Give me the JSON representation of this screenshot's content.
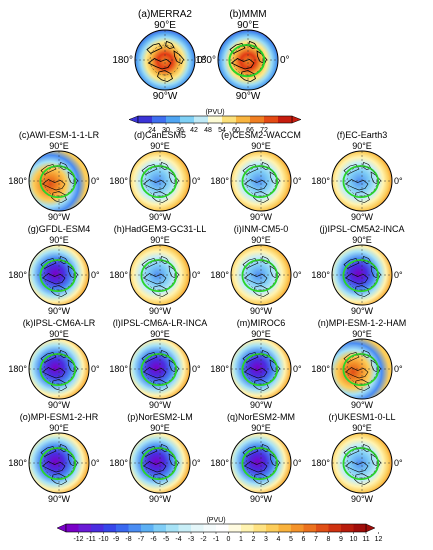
{
  "figure": {
    "top_panels": [
      {
        "label": "(a)MERRA2",
        "pattern": "clim"
      },
      {
        "label": "(b)MMM",
        "pattern": "clim"
      }
    ],
    "bias_panels": [
      {
        "label": "(c)AWI-ESM-1-1-LR",
        "pattern": "warm"
      },
      {
        "label": "(d)CanESM5",
        "pattern": "mild"
      },
      {
        "label": "(e)CESM2-WACCM",
        "pattern": "mild"
      },
      {
        "label": "(f)EC-Earth3",
        "pattern": "mild"
      },
      {
        "label": "(g)GFDL-ESM4",
        "pattern": "strong"
      },
      {
        "label": "(h)HadGEM3-GC31-LL",
        "pattern": "mild"
      },
      {
        "label": "(i)INM-CM5-0",
        "pattern": "mild"
      },
      {
        "label": "(j)IPSL-CM5A2-INCA",
        "pattern": "strong"
      },
      {
        "label": "(k)IPSL-CM6A-LR",
        "pattern": "strong"
      },
      {
        "label": "(l)IPSL-CM6A-LR-INCA",
        "pattern": "strong"
      },
      {
        "label": "(m)MIROC6",
        "pattern": "strong"
      },
      {
        "label": "(n)MPI-ESM-1-2-HAM",
        "pattern": "warm"
      },
      {
        "label": "(o)MPI-ESM1-2-HR",
        "pattern": "strong"
      },
      {
        "label": "(p)NorESM2-LM",
        "pattern": "strong"
      },
      {
        "label": "(q)NorESM2-MM",
        "pattern": "strong"
      },
      {
        "label": "(r)UKESM1-0-LL",
        "pattern": "mild"
      }
    ],
    "lon_labels": {
      "top": "90°E",
      "bottom": "90°W",
      "left": "180°",
      "right": "0°"
    },
    "colorbar_top": {
      "unit": "(PVU)",
      "ticks": [
        "24",
        "30",
        "36",
        "42",
        "48",
        "54",
        "60",
        "66",
        "72"
      ],
      "colors": [
        "#3b34d6",
        "#3f6ff0",
        "#4fa5f2",
        "#7fd0f5",
        "#bfe9f5",
        "#fdfbd4",
        "#fbe07a",
        "#f8b43f",
        "#f07f22",
        "#e44a14",
        "#c61c0e"
      ]
    },
    "colorbar_bottom": {
      "unit": "(PVU)",
      "ticks": [
        "-12",
        "-11",
        "-10",
        "-9",
        "-8",
        "-7",
        "-6",
        "-5",
        "-4",
        "-3",
        "-2",
        "-1",
        "0",
        "1",
        "2",
        "3",
        "4",
        "5",
        "6",
        "7",
        "8",
        "9",
        "10",
        "11",
        "12"
      ],
      "colors": [
        "#7a00c8",
        "#6a1bd6",
        "#4a2de0",
        "#3646ea",
        "#3968f0",
        "#4a8df3",
        "#5cb0f4",
        "#7fcdf6",
        "#a6e2f6",
        "#c8eef7",
        "#e4f6f9",
        "#f4fbfc",
        "#ffffff",
        "#fffbe0",
        "#fff3b0",
        "#fee282",
        "#fccd5a",
        "#f9b23c",
        "#f4932a",
        "#ec721e",
        "#e04f16",
        "#cf3210",
        "#b81c0c",
        "#a00d0a"
      ]
    },
    "colors": {
      "continent": "#000000",
      "ring_contour": "#2ad42a",
      "panel_border": "#000000"
    }
  }
}
